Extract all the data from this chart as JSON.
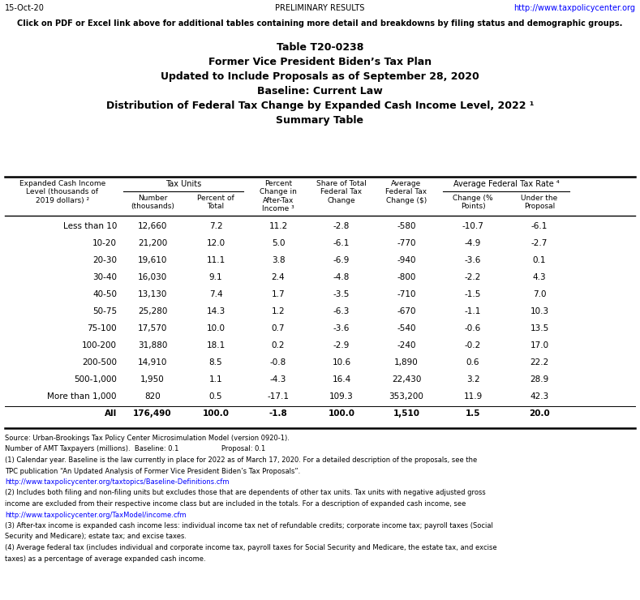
{
  "header_date": "15-Oct-20",
  "header_center": "PRELIMINARY RESULTS",
  "header_link": "http://www.taxpolicycenter.org",
  "banner_text": "Click on PDF or Excel link above for additional tables containing more detail and breakdowns by filing status and demographic groups.",
  "banner_color": "#00BFFF",
  "title1": "Table T20-0238",
  "title2": "Former Vice President Biden’s Tax Plan",
  "title3": "Updated to Include Proposals as of September 28, 2020",
  "title4": "Baseline: Current Law",
  "title5": "Distribution of Federal Tax Change by Expanded Cash Income Level, 2022 ¹",
  "title6": "Summary Table",
  "rows": [
    [
      "Less than 10",
      "12,660",
      "7.2",
      "11.2",
      "-2.8",
      "-580",
      "-10.7",
      "-6.1"
    ],
    [
      "10-20",
      "21,200",
      "12.0",
      "5.0",
      "-6.1",
      "-770",
      "-4.9",
      "-2.7"
    ],
    [
      "20-30",
      "19,610",
      "11.1",
      "3.8",
      "-6.9",
      "-940",
      "-3.6",
      "0.1"
    ],
    [
      "30-40",
      "16,030",
      "9.1",
      "2.4",
      "-4.8",
      "-800",
      "-2.2",
      "4.3"
    ],
    [
      "40-50",
      "13,130",
      "7.4",
      "1.7",
      "-3.5",
      "-710",
      "-1.5",
      "7.0"
    ],
    [
      "50-75",
      "25,280",
      "14.3",
      "1.2",
      "-6.3",
      "-670",
      "-1.1",
      "10.3"
    ],
    [
      "75-100",
      "17,570",
      "10.0",
      "0.7",
      "-3.6",
      "-540",
      "-0.6",
      "13.5"
    ],
    [
      "100-200",
      "31,880",
      "18.1",
      "0.2",
      "-2.9",
      "-240",
      "-0.2",
      "17.0"
    ],
    [
      "200-500",
      "14,910",
      "8.5",
      "-0.8",
      "10.6",
      "1,890",
      "0.6",
      "22.2"
    ],
    [
      "500-1,000",
      "1,950",
      "1.1",
      "-4.3",
      "16.4",
      "22,430",
      "3.2",
      "28.9"
    ],
    [
      "More than 1,000",
      "820",
      "0.5",
      "-17.1",
      "109.3",
      "353,200",
      "11.9",
      "42.3"
    ],
    [
      "All",
      "176,490",
      "100.0",
      "-1.8",
      "100.0",
      "1,510",
      "1.5",
      "20.0"
    ]
  ],
  "footnotes": [
    [
      "Source: Urban-Brookings Tax Policy Center Microsimulation Model (version 0920-1).",
      "black"
    ],
    [
      "Number of AMT Taxpayers (millions).  Baseline: 0.1                    Proposal: 0.1",
      "black"
    ],
    [
      "(1) Calendar year. Baseline is the law currently in place for 2022 as of March 17, 2020. For a detailed description of the proposals, see the",
      "black"
    ],
    [
      "TPC publication “An Updated Analysis of Former Vice President Biden’s Tax Proposals”.",
      "black"
    ],
    [
      "http://www.taxpolicycenter.org/taxtopics/Baseline-Definitions.cfm",
      "#0000FF"
    ],
    [
      "(2) Includes both filing and non-filing units but excludes those that are dependents of other tax units. Tax units with negative adjusted gross",
      "black"
    ],
    [
      "income are excluded from their respective income class but are included in the totals. For a description of expanded cash income, see",
      "black"
    ],
    [
      "http://www.taxpolicycenter.org/TaxModel/income.cfm",
      "#0000FF"
    ],
    [
      "(3) After-tax income is expanded cash income less: individual income tax net of refundable credits; corporate income tax; payroll taxes (Social",
      "black"
    ],
    [
      "Security and Medicare); estate tax; and excise taxes.",
      "black"
    ],
    [
      "(4) Average federal tax (includes individual and corporate income tax, payroll taxes for Social Security and Medicare, the estate tax, and excise",
      "black"
    ],
    [
      "taxes) as a percentage of average expanded cash income.",
      "black"
    ]
  ],
  "bg_color": "#FFFFFF",
  "link_color": "#0000FF"
}
